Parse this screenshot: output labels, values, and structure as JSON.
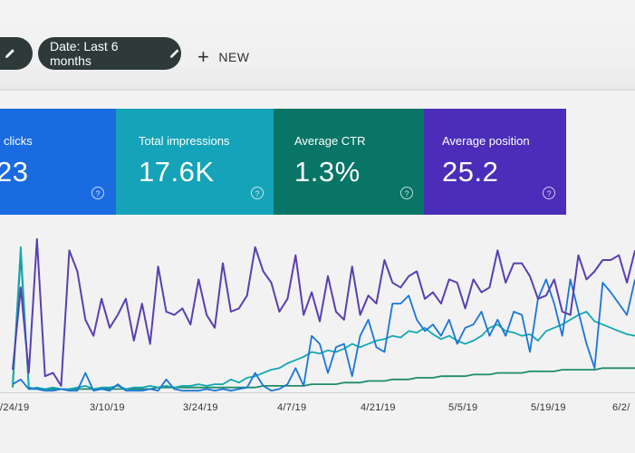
{
  "filters": {
    "date_chip_label": "Date: Last 6 months",
    "new_label": "NEW"
  },
  "metrics": [
    {
      "label": "clicks",
      "value": "23",
      "color": "#1a6be0"
    },
    {
      "label": "Total impressions",
      "value": "17.6K",
      "color": "#14a3b8"
    },
    {
      "label": "Average CTR",
      "value": "1.3%",
      "color": "#087566"
    },
    {
      "label": "Average position",
      "value": "25.2",
      "color": "#4a2db8"
    }
  ],
  "icons": {
    "help": "help-circle-icon",
    "edit": "pencil-icon",
    "add": "plus-icon"
  },
  "help_glyph": "?",
  "chart_data": {
    "type": "line",
    "x_tick_labels": [
      "/24/19",
      "3/10/19",
      "3/24/19",
      "4/7/19",
      "4/21/19",
      "5/5/19",
      "5/19/19",
      "6/2/"
    ],
    "series": [
      {
        "color": "#5a3fb0",
        "values": [
          14,
          65,
          12,
          95,
          10,
          12,
          4,
          88,
          75,
          45,
          35,
          58,
          40,
          48,
          58,
          32,
          55,
          30,
          78,
          50,
          48,
          52,
          42,
          70,
          48,
          40,
          80,
          50,
          52,
          60,
          90,
          75,
          68,
          50,
          58,
          85,
          48,
          62,
          44,
          72,
          50,
          45,
          78,
          48,
          60,
          55,
          82,
          68,
          65,
          72,
          75,
          58,
          62,
          55,
          70,
          68,
          52,
          70,
          62,
          65,
          88,
          68,
          80,
          80,
          72,
          58,
          60,
          70,
          50,
          48,
          85,
          70,
          75,
          82,
          82,
          85,
          68,
          88
        ]
      },
      {
        "color": "#1a75d8",
        "values": [
          5,
          8,
          2,
          2,
          1,
          1,
          2,
          1,
          1,
          12,
          1,
          2,
          1,
          5,
          1,
          1,
          1,
          2,
          1,
          8,
          2,
          1,
          1,
          1,
          2,
          1,
          2,
          1,
          2,
          3,
          12,
          4,
          1,
          2,
          5,
          15,
          4,
          35,
          30,
          12,
          28,
          30,
          10,
          35,
          45,
          28,
          25,
          55,
          55,
          60,
          45,
          38,
          42,
          35,
          45,
          30,
          40,
          42,
          50,
          35,
          45,
          35,
          50,
          48,
          25,
          58,
          70,
          55,
          35,
          70,
          50,
          30,
          15,
          68,
          62,
          55,
          48,
          70
        ]
      },
      {
        "color": "#12a8b0",
        "values": [
          5,
          90,
          2,
          3,
          2,
          3,
          2,
          2,
          3,
          4,
          2,
          3,
          3,
          4,
          2,
          3,
          3,
          4,
          3,
          4,
          3,
          4,
          4,
          5,
          4,
          5,
          5,
          8,
          6,
          9,
          10,
          12,
          14,
          15,
          18,
          20,
          22,
          25,
          24,
          26,
          25,
          27,
          30,
          28,
          30,
          32,
          33,
          35,
          34,
          38,
          37,
          40,
          36,
          33,
          35,
          32,
          30,
          32,
          35,
          40,
          42,
          38,
          37,
          35,
          36,
          32,
          38,
          40,
          42,
          45,
          48,
          50,
          44,
          42,
          40,
          38,
          36,
          35
        ]
      },
      {
        "color": "#1f8c6a",
        "values": [
          3,
          85,
          3,
          2,
          2,
          2,
          2,
          2,
          2,
          2,
          2,
          2,
          2,
          2,
          2,
          2,
          2,
          2,
          3,
          3,
          3,
          3,
          3,
          3,
          3,
          3,
          3,
          3,
          3,
          3,
          3,
          4,
          4,
          4,
          4,
          4,
          4,
          5,
          5,
          5,
          5,
          6,
          6,
          6,
          7,
          7,
          7,
          8,
          8,
          8,
          9,
          9,
          9,
          10,
          10,
          10,
          10,
          11,
          11,
          11,
          12,
          12,
          12,
          12,
          13,
          13,
          13,
          13,
          14,
          14,
          14,
          14,
          14,
          15,
          15,
          15,
          15,
          15
        ]
      }
    ],
    "ylim": [
      0,
      100
    ],
    "grid": false
  }
}
